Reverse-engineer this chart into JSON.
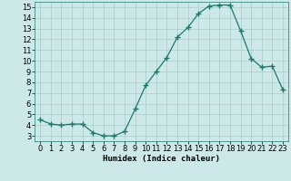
{
  "x": [
    0,
    1,
    2,
    3,
    4,
    5,
    6,
    7,
    8,
    9,
    10,
    11,
    12,
    13,
    14,
    15,
    16,
    17,
    18,
    19,
    20,
    21,
    22,
    23
  ],
  "y": [
    4.5,
    4.1,
    4.0,
    4.1,
    4.1,
    3.3,
    3.0,
    3.0,
    3.4,
    5.5,
    7.7,
    9.0,
    10.3,
    12.2,
    13.1,
    14.4,
    15.1,
    15.2,
    15.2,
    12.8,
    10.2,
    9.4,
    9.5,
    7.3
  ],
  "line_color": "#1a7a6e",
  "marker": "+",
  "marker_size": 4,
  "bg_color": "#cce8e8",
  "grid_color": "#b0d8d8",
  "xlabel": "Humidex (Indice chaleur)",
  "xlim": [
    -0.5,
    23.5
  ],
  "ylim": [
    2.5,
    15.5
  ],
  "yticks": [
    3,
    4,
    5,
    6,
    7,
    8,
    9,
    10,
    11,
    12,
    13,
    14,
    15
  ],
  "xticks": [
    0,
    1,
    2,
    3,
    4,
    5,
    6,
    7,
    8,
    9,
    10,
    11,
    12,
    13,
    14,
    15,
    16,
    17,
    18,
    19,
    20,
    21,
    22,
    23
  ],
  "label_fontsize": 6.5,
  "tick_fontsize": 6
}
